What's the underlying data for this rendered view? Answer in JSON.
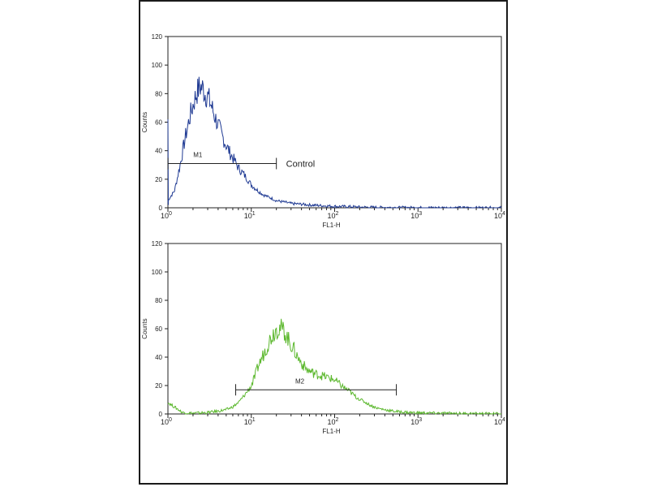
{
  "chart_data": [
    {
      "type": "line",
      "panel": "top",
      "xlabel": "FL1-H",
      "ylabel": "Counts",
      "x_scale": "log",
      "xlim": [
        1,
        10000
      ],
      "ylim": [
        0,
        120
      ],
      "y_ticks": [
        "0",
        "20",
        "40",
        "60",
        "80",
        "100",
        "120"
      ],
      "x_ticks": [
        {
          "base": "10",
          "exp": "0",
          "value": 1
        },
        {
          "base": "10",
          "exp": "1",
          "value": 10
        },
        {
          "base": "10",
          "exp": "2",
          "value": 100
        },
        {
          "base": "10",
          "exp": "3",
          "value": 1000
        },
        {
          "base": "10",
          "exp": "4",
          "value": 10000
        }
      ],
      "line_color": "#1f3a93",
      "series": [
        {
          "x": [
            1,
            1.2,
            1.4,
            1.6,
            1.8,
            2.0,
            2.2,
            2.4,
            2.6,
            2.8,
            3.0,
            3.3,
            3.6,
            4.0,
            4.5,
            5.0,
            5.6,
            6.3,
            7.0,
            8.0,
            9.0,
            10,
            12,
            14,
            17,
            20,
            25,
            30,
            40,
            50,
            70,
            100,
            150,
            200,
            300,
            500,
            1000,
            10000
          ],
          "y": [
            5,
            12,
            30,
            48,
            62,
            72,
            80,
            85,
            84,
            80,
            78,
            72,
            65,
            58,
            50,
            44,
            38,
            33,
            28,
            24,
            20,
            16,
            12,
            9,
            7,
            5,
            4,
            3,
            2.5,
            2,
            1.5,
            1,
            0.8,
            0.5,
            0.3,
            0.2,
            0.1,
            0
          ]
        }
      ],
      "marker": {
        "label": "M1",
        "start": 1,
        "end": 20,
        "y": 31
      },
      "annotation": "Control"
    },
    {
      "type": "line",
      "panel": "bottom",
      "xlabel": "FL1-H",
      "ylabel": "Counts",
      "x_scale": "log",
      "xlim": [
        1,
        10000
      ],
      "ylim": [
        0,
        120
      ],
      "y_ticks": [
        "0",
        "20",
        "40",
        "60",
        "80",
        "100",
        "120"
      ],
      "x_ticks": [
        {
          "base": "10",
          "exp": "0",
          "value": 1
        },
        {
          "base": "10",
          "exp": "1",
          "value": 10
        },
        {
          "base": "10",
          "exp": "2",
          "value": 100
        },
        {
          "base": "10",
          "exp": "3",
          "value": 1000
        },
        {
          "base": "10",
          "exp": "4",
          "value": 10000
        }
      ],
      "line_color": "#5cb82e",
      "series": [
        {
          "x": [
            1,
            1.5,
            2,
            3,
            4,
            5,
            6,
            7,
            8,
            9,
            10,
            11,
            12,
            14,
            16,
            18,
            20,
            22,
            25,
            28,
            32,
            36,
            40,
            45,
            50,
            60,
            70,
            80,
            100,
            120,
            150,
            180,
            220,
            270,
            330,
            400,
            500,
            600,
            800,
            1000,
            2000,
            5000,
            10000
          ],
          "y": [
            8,
            1,
            0.5,
            1,
            2,
            3,
            5,
            8,
            12,
            16,
            20,
            26,
            33,
            42,
            50,
            56,
            60,
            61,
            58,
            52,
            46,
            40,
            36,
            32,
            30,
            28,
            27,
            26,
            24,
            20,
            16,
            12,
            9,
            6,
            4,
            3,
            2,
            1.5,
            1,
            0.8,
            0.5,
            0.2,
            0.1
          ]
        }
      ],
      "marker": {
        "label": "M2",
        "start": 6.5,
        "end": 550,
        "y": 17
      }
    }
  ]
}
